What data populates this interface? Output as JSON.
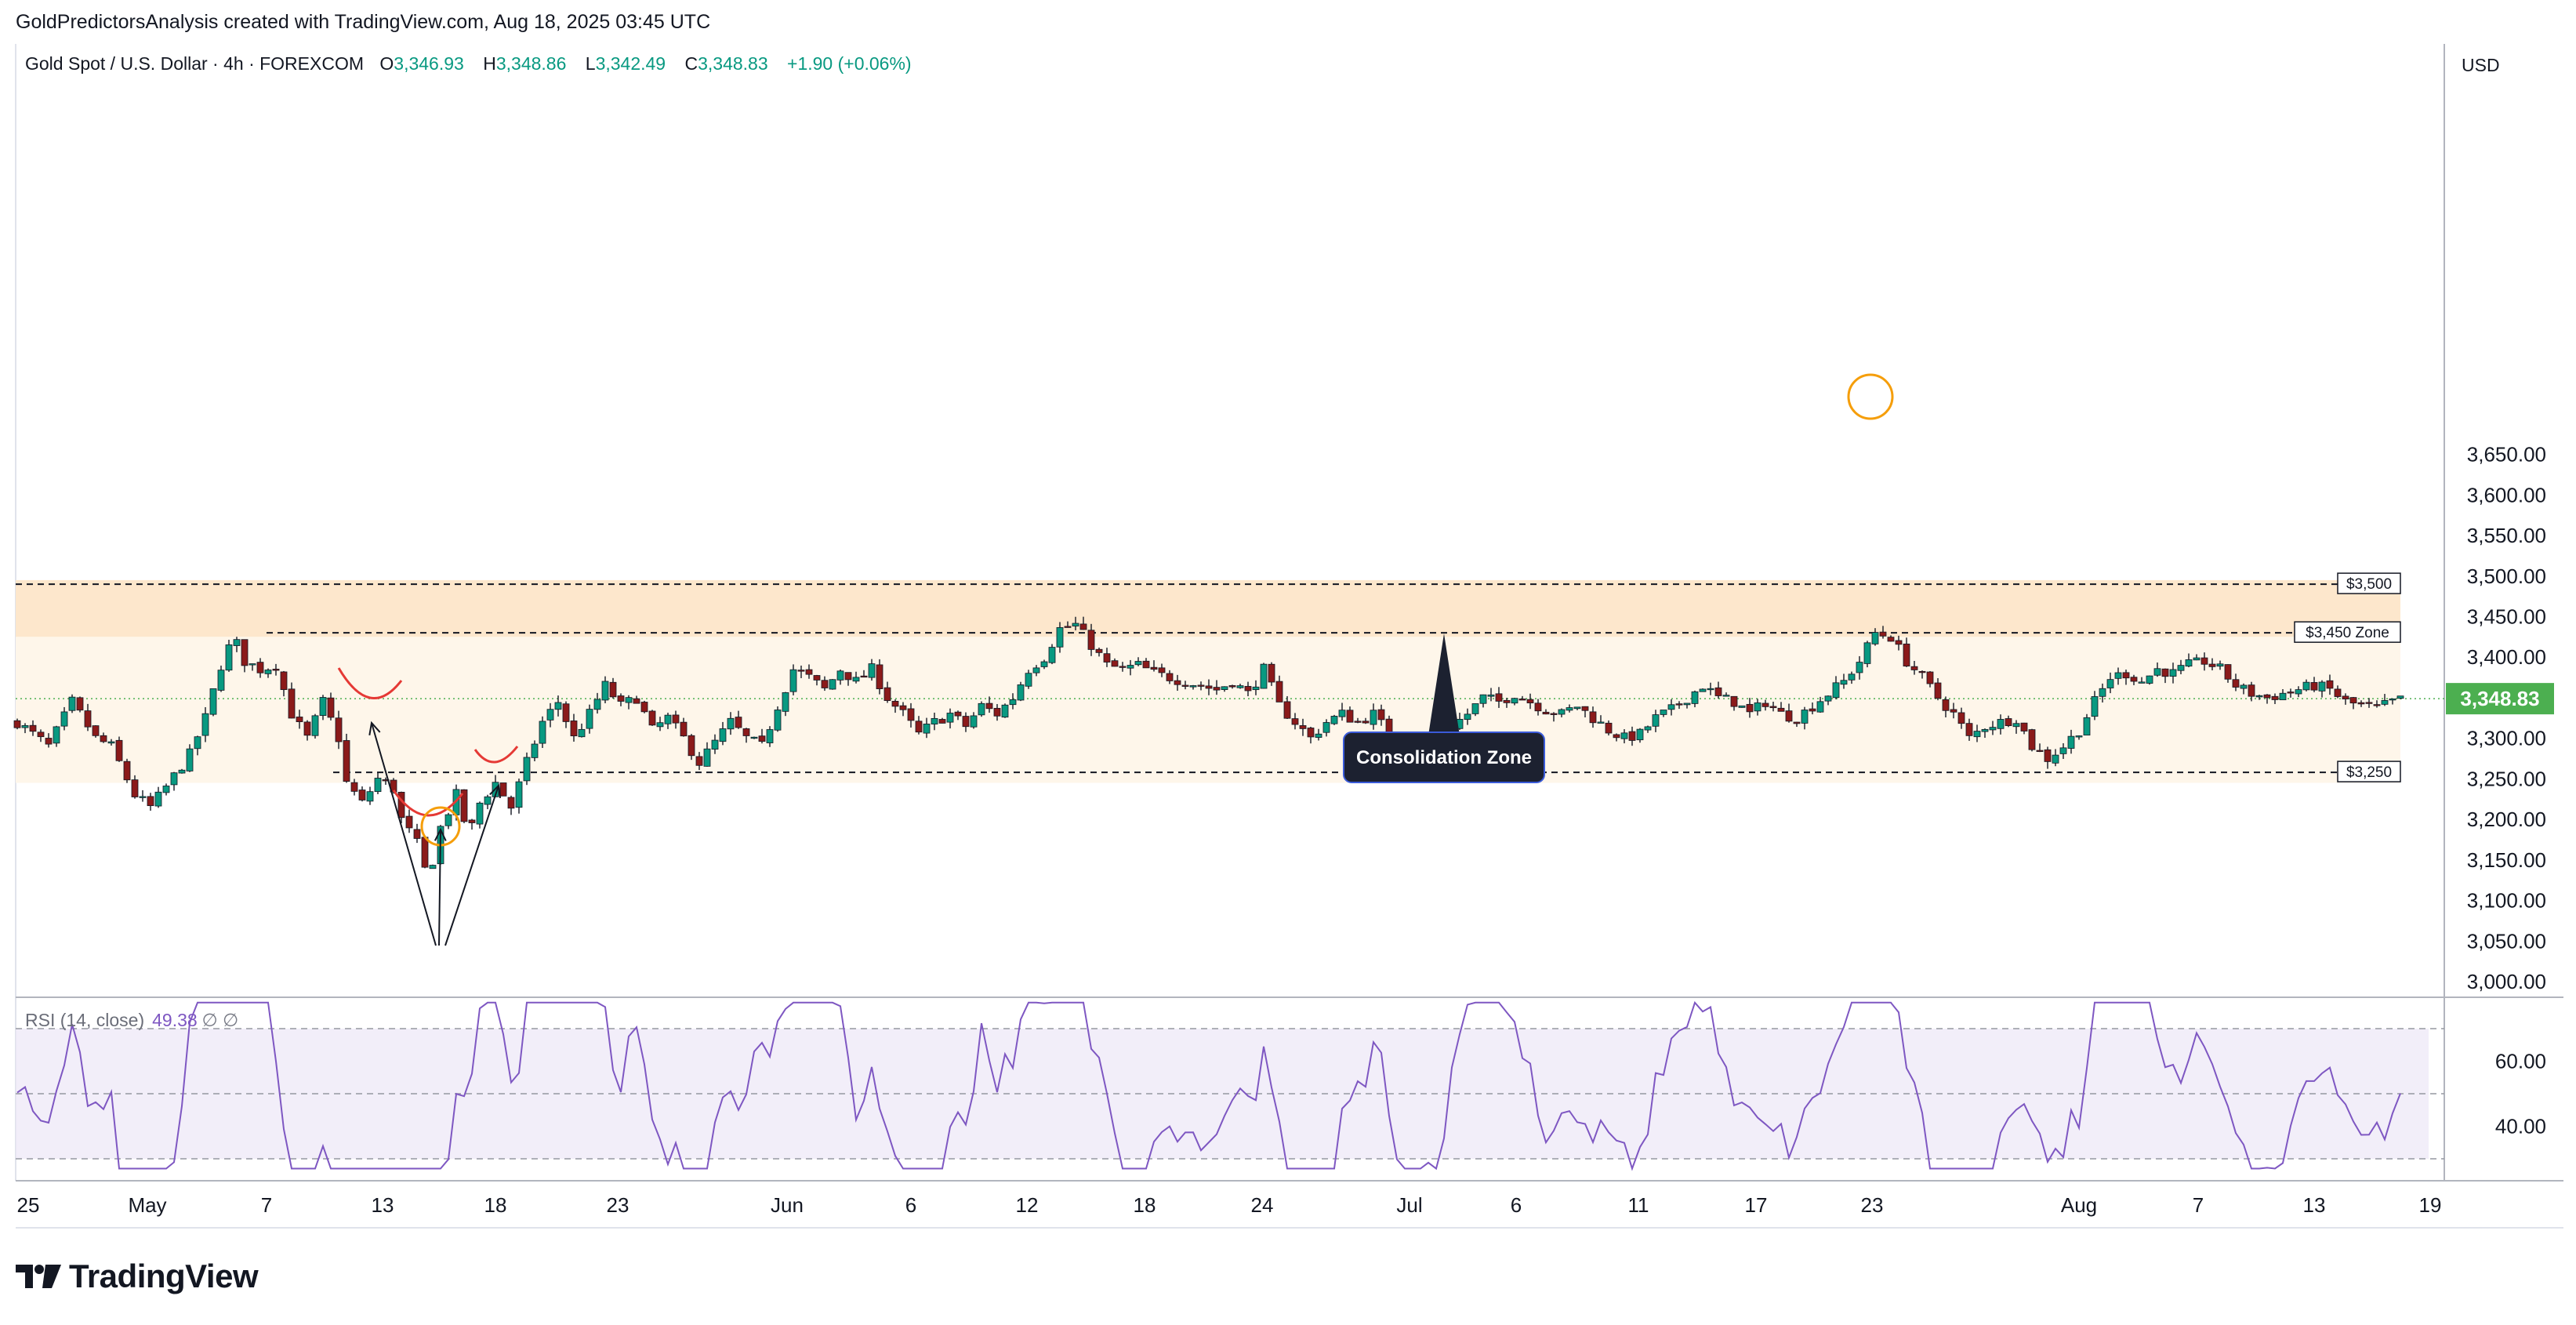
{
  "attribution": "GoldPredictorsAnalysis created with TradingView.com, Aug 18, 2025 03:45 UTC",
  "legend": {
    "symbol": "Gold Spot / U.S. Dollar · 4h · FOREXCOM",
    "open_label": "O",
    "open": "3,346.93",
    "high_label": "H",
    "high": "3,348.86",
    "low_label": "L",
    "low": "3,342.49",
    "close_label": "C",
    "close": "3,348.83",
    "change": "+1.90 (+0.06%)"
  },
  "currency": "USD",
  "price_badge": "3,348.83",
  "rsi_legend": {
    "name": "RSI (14, close)",
    "value": "49.38",
    "extra": "∅  ∅"
  },
  "branding": "TradingView",
  "colors": {
    "up": "#089981",
    "down": "#8b1a1a",
    "rsi": "#7e57c2",
    "badge": "#4caf50",
    "zone_upper": "#fde7cc",
    "zone_lower": "#fef6ea"
  },
  "chart_data": [
    {
      "type": "candlestick",
      "title": "Gold Spot / U.S. Dollar · 4h · FOREXCOM",
      "ylim": [
        2990,
        3670
      ],
      "y_ticks": [
        "3,000.00",
        "3,050.00",
        "3,100.00",
        "3,150.00",
        "3,200.00",
        "3,250.00",
        "3,300.00",
        "3,350.00",
        "3,400.00",
        "3,450.00",
        "3,500.00",
        "3,550.00",
        "3,600.00",
        "3,650.00"
      ],
      "x_ticks": [
        "25",
        "May",
        "7",
        "13",
        "18",
        "23",
        "Jun",
        "6",
        "12",
        "18",
        "24",
        "Jul",
        "6",
        "11",
        "17",
        "23",
        "Aug",
        "7",
        "13",
        "19"
      ],
      "close_path": [
        {
          "d": 0,
          "p": 3320
        },
        {
          "d": 2,
          "p": 3290
        },
        {
          "d": 3.5,
          "p": 3345
        },
        {
          "d": 5,
          "p": 3300
        },
        {
          "d": 6,
          "p": 3290
        },
        {
          "d": 7.5,
          "p": 3230
        },
        {
          "d": 8.5,
          "p": 3215
        },
        {
          "d": 9.5,
          "p": 3240
        },
        {
          "d": 11,
          "p": 3280
        },
        {
          "d": 12,
          "p": 3325
        },
        {
          "d": 13,
          "p": 3390
        },
        {
          "d": 13.8,
          "p": 3425
        },
        {
          "d": 14.5,
          "p": 3395
        },
        {
          "d": 15.5,
          "p": 3385
        },
        {
          "d": 16.5,
          "p": 3390
        },
        {
          "d": 17.5,
          "p": 3330
        },
        {
          "d": 18.5,
          "p": 3300
        },
        {
          "d": 19.5,
          "p": 3345
        },
        {
          "d": 20.5,
          "p": 3300
        },
        {
          "d": 21,
          "p": 3245
        },
        {
          "d": 22,
          "p": 3220
        },
        {
          "d": 23,
          "p": 3250
        },
        {
          "d": 24,
          "p": 3238
        },
        {
          "d": 24.5,
          "p": 3200
        },
        {
          "d": 25.5,
          "p": 3170
        },
        {
          "d": 26.2,
          "p": 3125
        },
        {
          "d": 27,
          "p": 3190
        },
        {
          "d": 28,
          "p": 3230
        },
        {
          "d": 28.8,
          "p": 3180
        },
        {
          "d": 29.5,
          "p": 3220
        },
        {
          "d": 30.5,
          "p": 3245
        },
        {
          "d": 31.5,
          "p": 3215
        },
        {
          "d": 32.5,
          "p": 3270
        },
        {
          "d": 33.5,
          "p": 3320
        },
        {
          "d": 34.5,
          "p": 3345
        },
        {
          "d": 35.5,
          "p": 3300
        },
        {
          "d": 36.5,
          "p": 3330
        },
        {
          "d": 37.5,
          "p": 3365
        },
        {
          "d": 38.5,
          "p": 3340
        },
        {
          "d": 39.5,
          "p": 3350
        },
        {
          "d": 40.5,
          "p": 3310
        },
        {
          "d": 41.5,
          "p": 3325
        },
        {
          "d": 42.5,
          "p": 3300
        },
        {
          "d": 43.5,
          "p": 3270
        },
        {
          "d": 44.5,
          "p": 3295
        },
        {
          "d": 45.5,
          "p": 3320
        },
        {
          "d": 46.5,
          "p": 3300
        },
        {
          "d": 47.5,
          "p": 3290
        },
        {
          "d": 48.5,
          "p": 3340
        },
        {
          "d": 49.5,
          "p": 3385
        },
        {
          "d": 50.5,
          "p": 3375
        },
        {
          "d": 51.5,
          "p": 3360
        },
        {
          "d": 52.5,
          "p": 3385
        },
        {
          "d": 53.5,
          "p": 3370
        },
        {
          "d": 54.5,
          "p": 3385
        },
        {
          "d": 55.5,
          "p": 3350
        },
        {
          "d": 56.5,
          "p": 3330
        },
        {
          "d": 57.5,
          "p": 3305
        },
        {
          "d": 58.5,
          "p": 3320
        },
        {
          "d": 59.5,
          "p": 3330
        },
        {
          "d": 60.5,
          "p": 3315
        },
        {
          "d": 61.5,
          "p": 3340
        },
        {
          "d": 62.5,
          "p": 3330
        },
        {
          "d": 63.5,
          "p": 3350
        },
        {
          "d": 64.5,
          "p": 3385
        },
        {
          "d": 65.5,
          "p": 3400
        },
        {
          "d": 66.5,
          "p": 3435
        },
        {
          "d": 67.5,
          "p": 3440
        },
        {
          "d": 68.5,
          "p": 3415
        },
        {
          "d": 69.5,
          "p": 3390
        },
        {
          "d": 70.5,
          "p": 3385
        },
        {
          "d": 71.5,
          "p": 3390
        },
        {
          "d": 72.5,
          "p": 3380
        },
        {
          "d": 73.5,
          "p": 3375
        },
        {
          "d": 74.5,
          "p": 3370
        },
        {
          "d": 75.5,
          "p": 3365
        },
        {
          "d": 76.5,
          "p": 3360
        },
        {
          "d": 77.5,
          "p": 3370
        },
        {
          "d": 78.5,
          "p": 3355
        },
        {
          "d": 79.5,
          "p": 3385
        },
        {
          "d": 80.5,
          "p": 3340
        },
        {
          "d": 81.5,
          "p": 3320
        },
        {
          "d": 82.5,
          "p": 3300
        },
        {
          "d": 83.5,
          "p": 3320
        },
        {
          "d": 84.5,
          "p": 3330
        },
        {
          "d": 85.5,
          "p": 3320
        },
        {
          "d": 86.5,
          "p": 3330
        },
        {
          "d": 87.5,
          "p": 3305
        },
        {
          "d": 88.5,
          "p": 3280
        },
        {
          "d": 89.5,
          "p": 3270
        },
        {
          "d": 90.5,
          "p": 3290
        },
        {
          "d": 91.5,
          "p": 3315
        },
        {
          "d": 92.5,
          "p": 3330
        },
        {
          "d": 93.5,
          "p": 3350
        },
        {
          "d": 94.5,
          "p": 3345
        },
        {
          "d": 95.5,
          "p": 3355
        },
        {
          "d": 96.5,
          "p": 3345
        },
        {
          "d": 97.5,
          "p": 3335
        },
        {
          "d": 98.5,
          "p": 3330
        },
        {
          "d": 99.5,
          "p": 3340
        },
        {
          "d": 100.5,
          "p": 3325
        },
        {
          "d": 101.5,
          "p": 3310
        },
        {
          "d": 102.5,
          "p": 3300
        },
        {
          "d": 103.5,
          "p": 3305
        },
        {
          "d": 104.5,
          "p": 3325
        },
        {
          "d": 105.5,
          "p": 3335
        },
        {
          "d": 106.5,
          "p": 3350
        },
        {
          "d": 107.5,
          "p": 3365
        },
        {
          "d": 108.5,
          "p": 3350
        },
        {
          "d": 109.5,
          "p": 3345
        },
        {
          "d": 110.5,
          "p": 3330
        },
        {
          "d": 111.5,
          "p": 3345
        },
        {
          "d": 112.5,
          "p": 3330
        },
        {
          "d": 113.5,
          "p": 3325
        },
        {
          "d": 114.5,
          "p": 3340
        },
        {
          "d": 115.5,
          "p": 3355
        },
        {
          "d": 116.5,
          "p": 3370
        },
        {
          "d": 117.5,
          "p": 3395
        },
        {
          "d": 118.5,
          "p": 3430
        },
        {
          "d": 119.5,
          "p": 3425
        },
        {
          "d": 120.5,
          "p": 3395
        },
        {
          "d": 121.5,
          "p": 3375
        },
        {
          "d": 122.5,
          "p": 3350
        },
        {
          "d": 123.5,
          "p": 3330
        },
        {
          "d": 124.5,
          "p": 3300
        },
        {
          "d": 125.5,
          "p": 3315
        },
        {
          "d": 126.5,
          "p": 3320
        },
        {
          "d": 127.5,
          "p": 3325
        },
        {
          "d": 128.5,
          "p": 3290
        },
        {
          "d": 129.5,
          "p": 3275
        },
        {
          "d": 130.5,
          "p": 3290
        },
        {
          "d": 131.5,
          "p": 3310
        },
        {
          "d": 132.5,
          "p": 3345
        },
        {
          "d": 133.5,
          "p": 3375
        },
        {
          "d": 134.5,
          "p": 3380
        },
        {
          "d": 135.5,
          "p": 3370
        },
        {
          "d": 136.5,
          "p": 3385
        },
        {
          "d": 137.5,
          "p": 3380
        },
        {
          "d": 138.5,
          "p": 3390
        },
        {
          "d": 139.5,
          "p": 3395
        },
        {
          "d": 140.5,
          "p": 3385
        },
        {
          "d": 141.5,
          "p": 3365
        },
        {
          "d": 142.5,
          "p": 3355
        },
        {
          "d": 143.5,
          "p": 3350
        },
        {
          "d": 144.5,
          "p": 3355
        },
        {
          "d": 145.5,
          "p": 3360
        },
        {
          "d": 146.5,
          "p": 3365
        },
        {
          "d": 147.5,
          "p": 3360
        },
        {
          "d": 148.5,
          "p": 3345
        },
        {
          "d": 149.5,
          "p": 3340
        },
        {
          "d": 150.5,
          "p": 3337
        },
        {
          "d": 151.5,
          "p": 3345
        },
        {
          "d": 152.3,
          "p": 3348.83
        }
      ],
      "levels": [
        {
          "price": 3490,
          "label": "$3,500"
        },
        {
          "price": 3430,
          "label": "$3,450 Zone"
        },
        {
          "price": 3258,
          "label": "$3,250"
        }
      ],
      "zones": [
        {
          "from": 3425,
          "to": 3495
        },
        {
          "from": 3245,
          "to": 3425
        }
      ],
      "annotation": {
        "text": "Consolidation Zone"
      }
    },
    {
      "type": "line",
      "title": "RSI (14, close)",
      "y_ticks": [
        "60.00",
        "40.00"
      ],
      "bands": [
        30,
        50,
        70
      ],
      "ylim": [
        25,
        80
      ],
      "last_value": 49.38
    }
  ]
}
